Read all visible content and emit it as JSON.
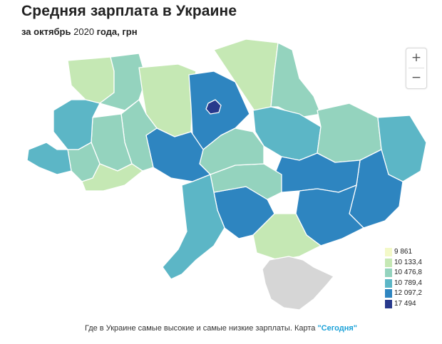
{
  "header": {
    "title": "Средняя зарплата в Украине",
    "subtitle_prefix": "за октябрь",
    "subtitle_year": "2020",
    "subtitle_suffix": "года, грн"
  },
  "zoom": {
    "in_label": "+",
    "out_label": "−"
  },
  "legend": [
    {
      "label": "9 861",
      "color": "#f3f9c8"
    },
    {
      "label": "10 133,4",
      "color": "#c5e8b4"
    },
    {
      "label": "10 476,8",
      "color": "#94d3be"
    },
    {
      "label": "10 789,4",
      "color": "#5cb6c6"
    },
    {
      "label": "12 097,2",
      "color": "#2e85c0"
    },
    {
      "label": "17 494",
      "color": "#28398c"
    }
  ],
  "colors": {
    "crimea": "#d6d6d6",
    "border": "#ffffff",
    "link": "#1aa1d8"
  },
  "caption": {
    "text": "Где в Украине самые высокие и самые низкие зарплаты. Карта",
    "link": "\"Сегодня\""
  }
}
